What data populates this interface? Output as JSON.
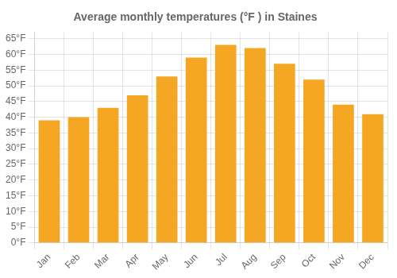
{
  "chart_data": {
    "type": "bar",
    "title": "Average monthly temperatures (°F ) in Staines",
    "categories": [
      "Jan",
      "Feb",
      "Mar",
      "Apr",
      "May",
      "Jun",
      "Jul",
      "Aug",
      "Sep",
      "Oct",
      "Nov",
      "Dec"
    ],
    "values": [
      39,
      40,
      43,
      47,
      53,
      59,
      63,
      62,
      57,
      52,
      44,
      41
    ],
    "color": "#F5A623",
    "ylim": [
      0,
      67
    ],
    "yticks": [
      {
        "value": 0,
        "label": "0°F"
      },
      {
        "value": 5,
        "label": "5°F"
      },
      {
        "value": 10,
        "label": "10°F"
      },
      {
        "value": 15,
        "label": "15°F"
      },
      {
        "value": 20,
        "label": "20°F"
      },
      {
        "value": 25,
        "label": "25°F"
      },
      {
        "value": 30,
        "label": "30°F"
      },
      {
        "value": 35,
        "label": "35°F"
      },
      {
        "value": 40,
        "label": "40°F"
      },
      {
        "value": 45,
        "label": "45°F"
      },
      {
        "value": 50,
        "label": "50°F"
      },
      {
        "value": 55,
        "label": "55°F"
      },
      {
        "value": 60,
        "label": "60°F"
      },
      {
        "value": 65,
        "label": "65°F"
      }
    ],
    "grid": true
  }
}
